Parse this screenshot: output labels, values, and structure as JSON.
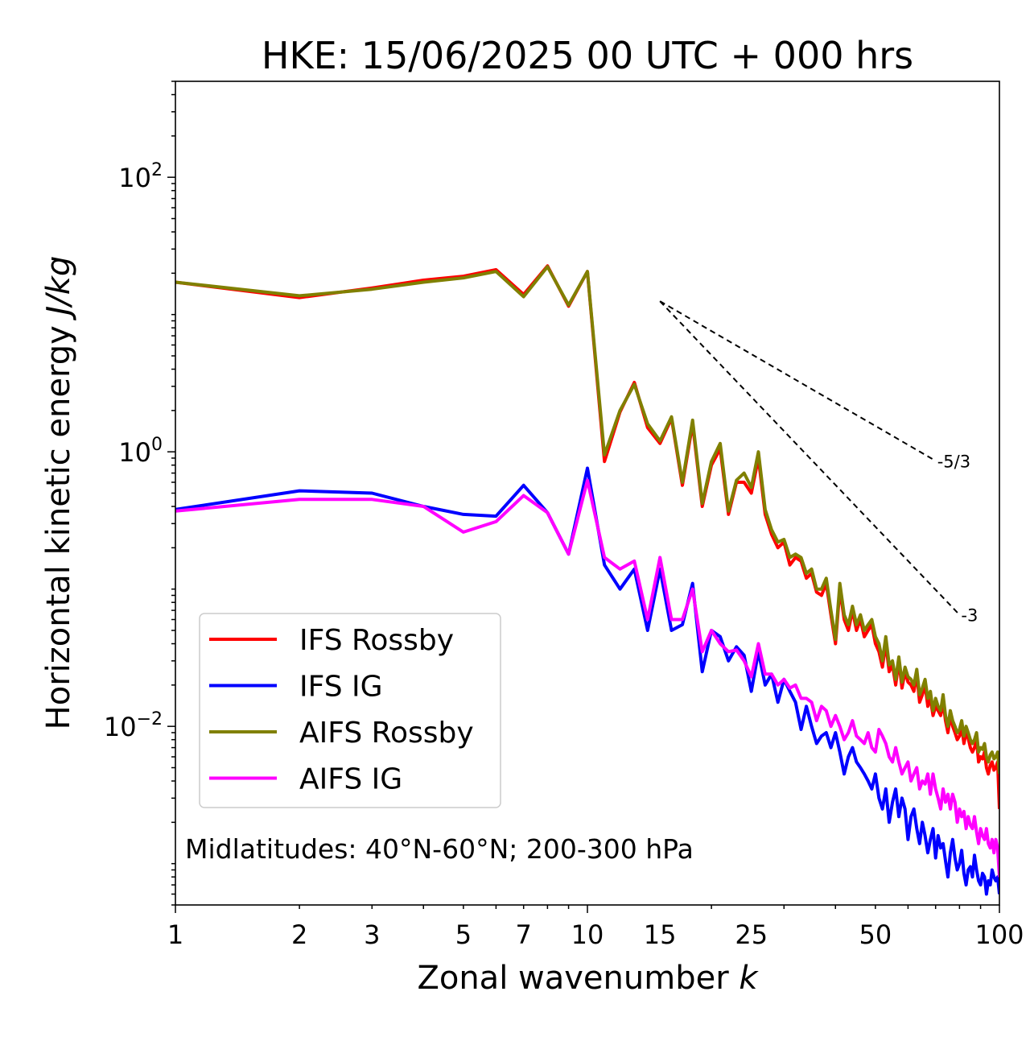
{
  "chart_data": {
    "type": "line",
    "title": "HKE: 15/06/2025 00 UTC + 000 hrs",
    "xlabel": "Zonal wavenumber",
    "xlabel_var": "k",
    "ylabel": "Horizontal kinetic energy",
    "ylabel_unit": "J/kg",
    "xscale": "log",
    "yscale": "log",
    "xlim": [
      1,
      100
    ],
    "ylim": [
      0.0005,
      500
    ],
    "x_ticks": [
      {
        "v": 1,
        "label": "1"
      },
      {
        "v": 2,
        "label": "2"
      },
      {
        "v": 3,
        "label": "3"
      },
      {
        "v": 5,
        "label": "5"
      },
      {
        "v": 7,
        "label": "7"
      },
      {
        "v": 10,
        "label": "10"
      },
      {
        "v": 15,
        "label": "15"
      },
      {
        "v": 25,
        "label": "25"
      },
      {
        "v": 50,
        "label": "50"
      },
      {
        "v": 100,
        "label": "100"
      }
    ],
    "y_ticks": [
      {
        "v": 0.01,
        "base": "10",
        "exp": "−2"
      },
      {
        "v": 1,
        "base": "10",
        "exp": "0"
      },
      {
        "v": 100,
        "base": "10",
        "exp": "2"
      }
    ],
    "annotation": "Midlatitudes: 40°N-60°N; 200-300 hPa",
    "legend_position": "lower-left",
    "reference_slopes": [
      {
        "label": "-5/3",
        "x": [
          15,
          70
        ],
        "y": [
          12.5,
          0.86
        ]
      },
      {
        "label": "-3",
        "x": [
          15,
          80
        ],
        "y": [
          12.5,
          0.065
        ]
      }
    ],
    "series": [
      {
        "name": "IFS Rossby",
        "color": "#ff0000",
        "x": [
          1,
          2,
          3,
          4,
          5,
          6,
          7,
          8,
          9,
          10,
          11,
          12,
          13,
          14,
          15,
          16,
          17,
          18,
          19,
          20,
          21,
          22,
          23,
          24,
          25,
          26,
          27,
          28,
          29,
          30,
          31,
          32,
          33,
          34,
          35,
          36,
          37,
          38,
          39,
          40,
          41,
          42,
          43,
          44,
          45,
          46,
          47,
          48,
          49,
          50,
          51,
          52,
          53,
          54,
          55,
          56,
          57,
          58,
          59,
          60,
          61,
          62,
          63,
          64,
          65,
          66,
          67,
          68,
          69,
          70,
          71,
          72,
          73,
          74,
          75,
          76,
          77,
          78,
          79,
          80,
          81,
          82,
          83,
          84,
          85,
          86,
          87,
          88,
          89,
          90,
          91,
          92,
          93,
          94,
          95,
          96,
          97,
          98,
          99,
          100
        ],
        "y": [
          17.2,
          13.3,
          15.6,
          17.8,
          19,
          21.2,
          14,
          22.6,
          11.5,
          20.6,
          0.85,
          1.95,
          3.2,
          1.5,
          1.15,
          1.75,
          0.57,
          1.6,
          0.4,
          0.8,
          1.05,
          0.35,
          0.6,
          0.6,
          0.5,
          0.9,
          0.35,
          0.25,
          0.2,
          0.22,
          0.15,
          0.17,
          0.16,
          0.12,
          0.13,
          0.095,
          0.09,
          0.11,
          0.065,
          0.04,
          0.1,
          0.06,
          0.05,
          0.07,
          0.05,
          0.06,
          0.045,
          0.05,
          0.055,
          0.04,
          0.035,
          0.027,
          0.04,
          0.025,
          0.028,
          0.02,
          0.03,
          0.019,
          0.025,
          0.021,
          0.02,
          0.018,
          0.024,
          0.015,
          0.017,
          0.02,
          0.014,
          0.016,
          0.012,
          0.014,
          0.013,
          0.012,
          0.015,
          0.011,
          0.009,
          0.012,
          0.01,
          0.009,
          0.008,
          0.0085,
          0.01,
          0.0075,
          0.009,
          0.0082,
          0.007,
          0.0065,
          0.007,
          0.008,
          0.0055,
          0.006,
          0.0058,
          0.0065,
          0.005,
          0.0045,
          0.0052,
          0.0055,
          0.0048,
          0.005,
          0.0055,
          0.0025
        ]
      },
      {
        "name": "IFS IG",
        "color": "#0000ff",
        "x": [
          1,
          2,
          3,
          4,
          5,
          6,
          7,
          8,
          9,
          10,
          11,
          12,
          13,
          14,
          15,
          16,
          17,
          18,
          19,
          20,
          21,
          22,
          23,
          24,
          25,
          26,
          27,
          28,
          29,
          30,
          31,
          32,
          33,
          34,
          35,
          36,
          37,
          38,
          39,
          40,
          41,
          42,
          43,
          44,
          45,
          46,
          47,
          48,
          49,
          50,
          51,
          52,
          53,
          54,
          55,
          56,
          57,
          58,
          59,
          60,
          61,
          62,
          63,
          64,
          65,
          66,
          67,
          68,
          69,
          70,
          71,
          72,
          73,
          74,
          75,
          76,
          77,
          78,
          79,
          80,
          81,
          82,
          83,
          84,
          85,
          86,
          87,
          88,
          89,
          90,
          91,
          92,
          93,
          94,
          95,
          96,
          97,
          98,
          99,
          100
        ],
        "y": [
          0.38,
          0.52,
          0.5,
          0.4,
          0.35,
          0.34,
          0.57,
          0.36,
          0.18,
          0.76,
          0.15,
          0.1,
          0.14,
          0.05,
          0.14,
          0.05,
          0.055,
          0.11,
          0.025,
          0.05,
          0.045,
          0.03,
          0.038,
          0.033,
          0.018,
          0.035,
          0.02,
          0.024,
          0.015,
          0.022,
          0.018,
          0.015,
          0.0095,
          0.014,
          0.01,
          0.0075,
          0.0085,
          0.009,
          0.007,
          0.009,
          0.0065,
          0.0045,
          0.006,
          0.007,
          0.0055,
          0.005,
          0.0045,
          0.004,
          0.0035,
          0.0045,
          0.003,
          0.0025,
          0.0035,
          0.002,
          0.0028,
          0.0035,
          0.0022,
          0.003,
          0.0025,
          0.0015,
          0.0022,
          0.0025,
          0.0018,
          0.0014,
          0.002,
          0.0016,
          0.0012,
          0.0015,
          0.0018,
          0.0011,
          0.0016,
          0.0013,
          0.0014,
          0.00105,
          0.0008,
          0.0012,
          0.0015,
          0.0011,
          0.0009,
          0.001,
          0.00125,
          0.00085,
          0.0007,
          0.0009,
          0.00095,
          0.0008,
          0.00115,
          0.0009,
          0.00075,
          0.0007,
          0.00085,
          0.0008,
          0.0006,
          0.00075,
          0.0007,
          0.0009,
          0.0008,
          0.00075,
          0.0008,
          0.0006
        ]
      },
      {
        "name": "AIFS Rossby",
        "color": "#808000",
        "x": [
          1,
          2,
          3,
          4,
          5,
          6,
          7,
          8,
          9,
          10,
          11,
          12,
          13,
          14,
          15,
          16,
          17,
          18,
          19,
          20,
          21,
          22,
          23,
          24,
          25,
          26,
          27,
          28,
          29,
          30,
          31,
          32,
          33,
          34,
          35,
          36,
          37,
          38,
          39,
          40,
          41,
          42,
          43,
          44,
          45,
          46,
          47,
          48,
          49,
          50,
          51,
          52,
          53,
          54,
          55,
          56,
          57,
          58,
          59,
          60,
          61,
          62,
          63,
          64,
          65,
          66,
          67,
          68,
          69,
          70,
          71,
          72,
          73,
          74,
          75,
          76,
          77,
          78,
          79,
          80,
          81,
          82,
          83,
          84,
          85,
          86,
          87,
          88,
          89,
          90,
          91,
          92,
          93,
          94,
          95,
          96,
          97,
          98,
          99,
          100
        ],
        "y": [
          17.2,
          13.7,
          15.3,
          17.2,
          18.5,
          20.6,
          13.5,
          22.3,
          11.7,
          20.6,
          0.95,
          2.0,
          3.1,
          1.6,
          1.2,
          1.8,
          0.6,
          1.7,
          0.42,
          0.85,
          1.15,
          0.37,
          0.62,
          0.7,
          0.55,
          1.0,
          0.38,
          0.27,
          0.22,
          0.23,
          0.17,
          0.18,
          0.17,
          0.13,
          0.14,
          0.1,
          0.1,
          0.12,
          0.07,
          0.043,
          0.11,
          0.065,
          0.055,
          0.075,
          0.055,
          0.065,
          0.05,
          0.055,
          0.06,
          0.045,
          0.04,
          0.03,
          0.045,
          0.028,
          0.03,
          0.022,
          0.032,
          0.021,
          0.027,
          0.023,
          0.022,
          0.02,
          0.026,
          0.017,
          0.019,
          0.022,
          0.016,
          0.018,
          0.013,
          0.016,
          0.014,
          0.013,
          0.017,
          0.012,
          0.01,
          0.013,
          0.011,
          0.01,
          0.009,
          0.0095,
          0.011,
          0.0085,
          0.01,
          0.009,
          0.008,
          0.0075,
          0.008,
          0.009,
          0.0065,
          0.007,
          0.0068,
          0.0075,
          0.006,
          0.0055,
          0.0062,
          0.0065,
          0.0058,
          0.006,
          0.0065,
          0.0045
        ]
      },
      {
        "name": "AIFS IG",
        "color": "#ff00ff",
        "x": [
          1,
          2,
          3,
          4,
          5,
          6,
          7,
          8,
          9,
          10,
          11,
          12,
          13,
          14,
          15,
          16,
          17,
          18,
          19,
          20,
          21,
          22,
          23,
          24,
          25,
          26,
          27,
          28,
          29,
          30,
          31,
          32,
          33,
          34,
          35,
          36,
          37,
          38,
          39,
          40,
          41,
          42,
          43,
          44,
          45,
          46,
          47,
          48,
          49,
          50,
          51,
          52,
          53,
          54,
          55,
          56,
          57,
          58,
          59,
          60,
          61,
          62,
          63,
          64,
          65,
          66,
          67,
          68,
          69,
          70,
          71,
          72,
          73,
          74,
          75,
          76,
          77,
          78,
          79,
          80,
          81,
          82,
          83,
          84,
          85,
          86,
          87,
          88,
          89,
          90,
          91,
          92,
          93,
          94,
          95,
          96,
          97,
          98,
          99,
          100
        ],
        "y": [
          0.37,
          0.45,
          0.45,
          0.4,
          0.26,
          0.31,
          0.48,
          0.36,
          0.18,
          0.62,
          0.17,
          0.14,
          0.16,
          0.06,
          0.17,
          0.06,
          0.06,
          0.1,
          0.035,
          0.05,
          0.04,
          0.035,
          0.036,
          0.03,
          0.023,
          0.04,
          0.024,
          0.024,
          0.02,
          0.022,
          0.019,
          0.02,
          0.016,
          0.016,
          0.015,
          0.011,
          0.014,
          0.013,
          0.01,
          0.012,
          0.01,
          0.008,
          0.009,
          0.011,
          0.0085,
          0.008,
          0.0075,
          0.009,
          0.007,
          0.0065,
          0.0095,
          0.0085,
          0.0075,
          0.006,
          0.0055,
          0.007,
          0.0055,
          0.0045,
          0.005,
          0.0055,
          0.004,
          0.0045,
          0.005,
          0.0035,
          0.004,
          0.0038,
          0.0045,
          0.0032,
          0.0045,
          0.0035,
          0.003,
          0.0025,
          0.0035,
          0.0028,
          0.0032,
          0.0025,
          0.0032,
          0.0028,
          0.002,
          0.0025,
          0.0022,
          0.0024,
          0.0018,
          0.0022,
          0.0019,
          0.0018,
          0.0022,
          0.0017,
          0.0014,
          0.0018,
          0.0016,
          0.0015,
          0.0018,
          0.0014,
          0.0013,
          0.0015,
          0.0012,
          0.0015,
          0.0013,
          0.0008
        ]
      }
    ]
  }
}
